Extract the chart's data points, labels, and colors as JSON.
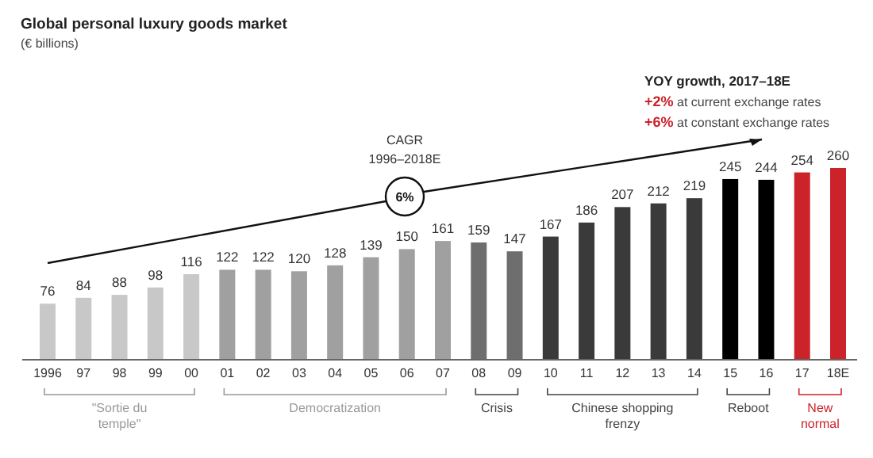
{
  "chart_data": {
    "type": "bar",
    "title": "Global personal luxury goods market",
    "subtitle": "(€ billions)",
    "categories": [
      "1996",
      "97",
      "98",
      "99",
      "00",
      "01",
      "02",
      "03",
      "04",
      "05",
      "06",
      "07",
      "08",
      "09",
      "10",
      "11",
      "12",
      "13",
      "14",
      "15",
      "16",
      "17",
      "18E"
    ],
    "values": [
      76,
      84,
      88,
      98,
      116,
      122,
      122,
      120,
      128,
      139,
      150,
      161,
      159,
      147,
      167,
      186,
      207,
      212,
      219,
      245,
      244,
      254,
      260
    ],
    "colors": [
      "#c8c8c8",
      "#c8c8c8",
      "#c8c8c8",
      "#c8c8c8",
      "#c8c8c8",
      "#a0a0a0",
      "#a0a0a0",
      "#a0a0a0",
      "#a0a0a0",
      "#a0a0a0",
      "#a0a0a0",
      "#a0a0a0",
      "#6e6e6e",
      "#6e6e6e",
      "#3a3a3a",
      "#3a3a3a",
      "#3a3a3a",
      "#3a3a3a",
      "#3a3a3a",
      "#000000",
      "#000000",
      "#cc2229",
      "#cc2229"
    ],
    "data_labels": true,
    "annotations": [
      "CAGR",
      "1996–2018E",
      "6%",
      "YOY growth, 2017–18E",
      "+2% at current exchange rates",
      "+6% at constant exchange rates",
      "\"Sortie du temple\"",
      "Democratization",
      "Crisis",
      "Chinese shopping frenzy",
      "Reboot",
      "New normal"
    ]
  }
}
